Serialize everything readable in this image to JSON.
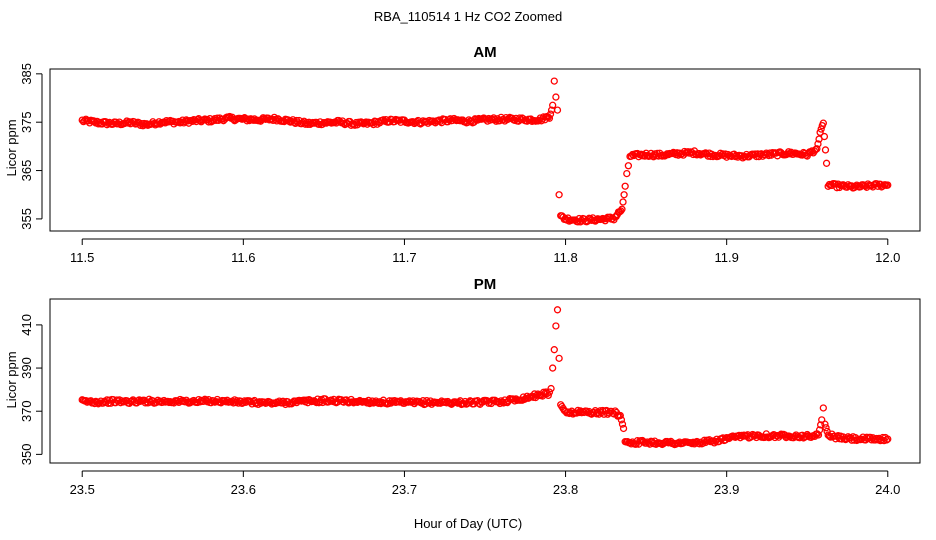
{
  "figure": {
    "title": "RBA_110514  1 Hz CO2 Zoomed",
    "xlabel": "Hour of Day (UTC)",
    "point_color": "#ff0000"
  },
  "chart_data": [
    {
      "type": "scatter",
      "title": "AM",
      "xlabel": "",
      "ylabel": "Licor ppm",
      "xlim": [
        11.48,
        12.02
      ],
      "ylim": [
        352.5,
        386
      ],
      "x_ticks": [
        "11.5",
        "11.6",
        "11.7",
        "11.8",
        "11.9",
        "12.0"
      ],
      "y_ticks": [
        "355",
        "365",
        "375",
        "385"
      ],
      "series": [
        {
          "marker": "open-circle",
          "color": "#ff0000",
          "points": [
            [
              11.5,
              375.3
            ],
            [
              11.51,
              374.9
            ],
            [
              11.52,
              374.7
            ],
            [
              11.53,
              374.9
            ],
            [
              11.54,
              374.5
            ],
            [
              11.55,
              375.1
            ],
            [
              11.56,
              375.0
            ],
            [
              11.57,
              375.3
            ],
            [
              11.58,
              375.4
            ],
            [
              11.59,
              375.8
            ],
            [
              11.6,
              375.6
            ],
            [
              11.61,
              375.5
            ],
            [
              11.62,
              375.7
            ],
            [
              11.63,
              375.2
            ],
            [
              11.64,
              374.7
            ],
            [
              11.65,
              374.9
            ],
            [
              11.66,
              375.0
            ],
            [
              11.67,
              374.6
            ],
            [
              11.68,
              374.8
            ],
            [
              11.69,
              375.3
            ],
            [
              11.7,
              375.2
            ],
            [
              11.71,
              375.0
            ],
            [
              11.72,
              375.2
            ],
            [
              11.73,
              375.4
            ],
            [
              11.74,
              375.2
            ],
            [
              11.75,
              375.5
            ],
            [
              11.76,
              375.6
            ],
            [
              11.77,
              375.6
            ],
            [
              11.78,
              375.5
            ],
            [
              11.785,
              375.6
            ],
            [
              11.79,
              376.2
            ],
            [
              11.792,
              378.5
            ],
            [
              11.793,
              383.5
            ],
            [
              11.794,
              380.2
            ],
            [
              11.795,
              377.5
            ],
            [
              11.796,
              360.0
            ],
            [
              11.797,
              355.5
            ],
            [
              11.8,
              355.0
            ],
            [
              11.81,
              354.7
            ],
            [
              11.82,
              354.9
            ],
            [
              11.83,
              355.1
            ],
            [
              11.835,
              357.0
            ],
            [
              11.837,
              361.5
            ],
            [
              11.838,
              364.0
            ],
            [
              11.839,
              366.0
            ],
            [
              11.84,
              368.0
            ],
            [
              11.85,
              368.3
            ],
            [
              11.86,
              368.2
            ],
            [
              11.87,
              368.5
            ],
            [
              11.88,
              368.7
            ],
            [
              11.89,
              368.3
            ],
            [
              11.9,
              368.1
            ],
            [
              11.91,
              368.0
            ],
            [
              11.92,
              368.2
            ],
            [
              11.93,
              368.4
            ],
            [
              11.94,
              368.6
            ],
            [
              11.95,
              368.3
            ],
            [
              11.956,
              369.5
            ],
            [
              11.958,
              372.5
            ],
            [
              11.96,
              374.8
            ],
            [
              11.962,
              366.5
            ],
            [
              11.963,
              362.0
            ],
            [
              11.97,
              361.8
            ],
            [
              11.98,
              361.6
            ],
            [
              11.99,
              361.9
            ],
            [
              12.0,
              362.0
            ]
          ]
        }
      ]
    },
    {
      "type": "scatter",
      "title": "PM",
      "xlabel": "",
      "ylabel": "Licor ppm",
      "xlim": [
        23.48,
        24.02
      ],
      "ylim": [
        346,
        422
      ],
      "x_ticks": [
        "23.5",
        "23.6",
        "23.7",
        "23.8",
        "23.9",
        "24.0"
      ],
      "y_ticks": [
        "350",
        "370",
        "390",
        "410"
      ],
      "series": [
        {
          "marker": "open-circle",
          "color": "#ff0000",
          "points": [
            [
              23.5,
              374.5
            ],
            [
              23.51,
              374.3
            ],
            [
              23.52,
              374.6
            ],
            [
              23.53,
              374.4
            ],
            [
              23.54,
              374.7
            ],
            [
              23.55,
              374.5
            ],
            [
              23.56,
              374.6
            ],
            [
              23.57,
              374.4
            ],
            [
              23.58,
              374.8
            ],
            [
              23.59,
              374.5
            ],
            [
              23.6,
              374.2
            ],
            [
              23.61,
              374.0
            ],
            [
              23.62,
              373.8
            ],
            [
              23.63,
              374.2
            ],
            [
              23.64,
              374.6
            ],
            [
              23.65,
              374.9
            ],
            [
              23.66,
              374.7
            ],
            [
              23.67,
              374.5
            ],
            [
              23.68,
              374.4
            ],
            [
              23.69,
              374.1
            ],
            [
              23.7,
              373.9
            ],
            [
              23.71,
              374.0
            ],
            [
              23.72,
              374.1
            ],
            [
              23.73,
              374.0
            ],
            [
              23.74,
              374.0
            ],
            [
              23.75,
              374.1
            ],
            [
              23.76,
              374.5
            ],
            [
              23.77,
              375.5
            ],
            [
              23.78,
              377.0
            ],
            [
              23.785,
              377.8
            ],
            [
              23.79,
              378.3
            ],
            [
              23.791,
              380.5
            ],
            [
              23.792,
              390.0
            ],
            [
              23.793,
              398.5
            ],
            [
              23.794,
              409.5
            ],
            [
              23.795,
              417.0
            ],
            [
              23.796,
              394.5
            ],
            [
              23.797,
              373.0
            ],
            [
              23.8,
              369.5
            ],
            [
              23.81,
              369.6
            ],
            [
              23.82,
              369.4
            ],
            [
              23.83,
              369.5
            ],
            [
              23.834,
              368.0
            ],
            [
              23.836,
              362.0
            ],
            [
              23.837,
              356.0
            ],
            [
              23.84,
              355.5
            ],
            [
              23.85,
              355.6
            ],
            [
              23.86,
              355.4
            ],
            [
              23.87,
              355.3
            ],
            [
              23.88,
              355.2
            ],
            [
              23.89,
              355.9
            ],
            [
              23.9,
              357.2
            ],
            [
              23.91,
              358.3
            ],
            [
              23.92,
              358.8
            ],
            [
              23.93,
              358.5
            ],
            [
              23.94,
              358.7
            ],
            [
              23.95,
              358.3
            ],
            [
              23.957,
              359.0
            ],
            [
              23.959,
              366.0
            ],
            [
              23.96,
              371.5
            ],
            [
              23.961,
              364.0
            ],
            [
              23.963,
              359.0
            ],
            [
              23.97,
              357.6
            ],
            [
              23.98,
              357.2
            ],
            [
              23.99,
              357.0
            ],
            [
              24.0,
              357.1
            ]
          ]
        }
      ]
    }
  ]
}
